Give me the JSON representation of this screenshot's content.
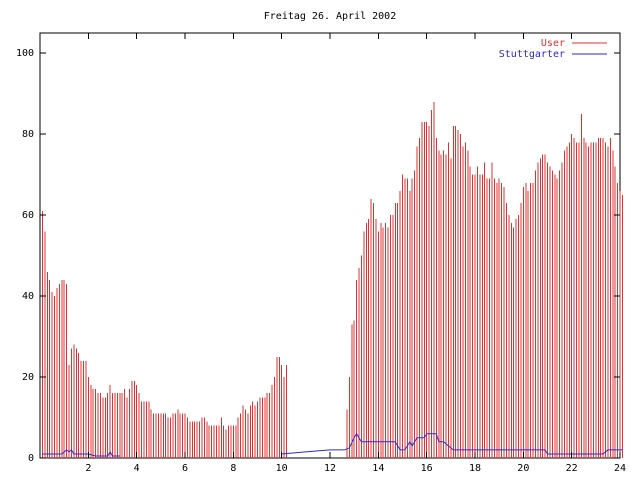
{
  "chart_data": {
    "type": "bar",
    "title": "Freitag 26. April 2002",
    "xlabel": "",
    "ylabel": "",
    "xlim": [
      0,
      24
    ],
    "ylim": [
      0,
      105
    ],
    "x_ticks": [
      2,
      4,
      6,
      8,
      10,
      12,
      14,
      16,
      18,
      20,
      22,
      24
    ],
    "y_ticks": [
      0,
      20,
      40,
      60,
      80,
      100
    ],
    "grid": false,
    "legend_position": "top-right",
    "series": [
      {
        "name": "User",
        "type": "bar",
        "color": "#e03030",
        "points": [
          [
            0.1,
            61
          ],
          [
            0.2,
            56
          ],
          [
            0.3,
            46
          ],
          [
            0.4,
            44
          ],
          [
            0.5,
            41
          ],
          [
            0.6,
            40
          ],
          [
            0.7,
            42
          ],
          [
            0.8,
            43
          ],
          [
            0.9,
            44
          ],
          [
            1.0,
            44
          ],
          [
            1.1,
            43
          ],
          [
            1.2,
            23
          ],
          [
            1.3,
            27
          ],
          [
            1.4,
            28
          ],
          [
            1.5,
            27
          ],
          [
            1.6,
            26
          ],
          [
            1.7,
            24
          ],
          [
            1.8,
            24
          ],
          [
            1.9,
            24
          ],
          [
            2.0,
            20
          ],
          [
            2.1,
            18
          ],
          [
            2.2,
            17
          ],
          [
            2.3,
            17
          ],
          [
            2.4,
            16
          ],
          [
            2.5,
            16
          ],
          [
            2.6,
            15
          ],
          [
            2.7,
            15
          ],
          [
            2.8,
            16
          ],
          [
            2.9,
            18
          ],
          [
            3.0,
            16
          ],
          [
            3.1,
            16
          ],
          [
            3.2,
            16
          ],
          [
            3.3,
            16
          ],
          [
            3.4,
            16
          ],
          [
            3.5,
            17
          ],
          [
            3.6,
            15
          ],
          [
            3.7,
            17
          ],
          [
            3.8,
            19
          ],
          [
            3.9,
            19
          ],
          [
            4.0,
            18
          ],
          [
            4.1,
            16
          ],
          [
            4.2,
            14
          ],
          [
            4.3,
            14
          ],
          [
            4.4,
            14
          ],
          [
            4.5,
            14
          ],
          [
            4.6,
            12
          ],
          [
            4.7,
            11
          ],
          [
            4.8,
            11
          ],
          [
            4.9,
            11
          ],
          [
            5.0,
            11
          ],
          [
            5.1,
            11
          ],
          [
            5.2,
            11
          ],
          [
            5.3,
            10
          ],
          [
            5.4,
            10
          ],
          [
            5.5,
            11
          ],
          [
            5.6,
            11
          ],
          [
            5.7,
            12
          ],
          [
            5.8,
            11
          ],
          [
            5.9,
            11
          ],
          [
            6.0,
            11
          ],
          [
            6.1,
            10
          ],
          [
            6.2,
            9
          ],
          [
            6.3,
            9
          ],
          [
            6.4,
            9
          ],
          [
            6.5,
            9
          ],
          [
            6.6,
            9
          ],
          [
            6.7,
            10
          ],
          [
            6.8,
            10
          ],
          [
            6.9,
            9
          ],
          [
            7.0,
            8
          ],
          [
            7.1,
            8
          ],
          [
            7.2,
            8
          ],
          [
            7.3,
            8
          ],
          [
            7.4,
            8
          ],
          [
            7.5,
            10
          ],
          [
            7.6,
            8
          ],
          [
            7.7,
            7
          ],
          [
            7.8,
            8
          ],
          [
            7.9,
            8
          ],
          [
            8.0,
            8
          ],
          [
            8.1,
            8
          ],
          [
            8.2,
            10
          ],
          [
            8.3,
            11
          ],
          [
            8.4,
            13
          ],
          [
            8.5,
            12
          ],
          [
            8.6,
            11
          ],
          [
            8.7,
            13
          ],
          [
            8.8,
            14
          ],
          [
            8.9,
            13
          ],
          [
            9.0,
            14
          ],
          [
            9.1,
            15
          ],
          [
            9.2,
            15
          ],
          [
            9.3,
            15
          ],
          [
            9.4,
            16
          ],
          [
            9.5,
            16
          ],
          [
            9.6,
            18
          ],
          [
            9.7,
            20
          ],
          [
            9.8,
            25
          ],
          [
            9.9,
            25
          ],
          [
            10.0,
            23
          ],
          [
            10.1,
            20
          ],
          [
            10.2,
            23
          ],
          [
            12.7,
            12
          ],
          [
            12.8,
            20
          ],
          [
            12.9,
            33
          ],
          [
            13.0,
            34
          ],
          [
            13.1,
            44
          ],
          [
            13.2,
            47
          ],
          [
            13.3,
            50
          ],
          [
            13.4,
            56
          ],
          [
            13.5,
            58
          ],
          [
            13.6,
            59
          ],
          [
            13.7,
            64
          ],
          [
            13.8,
            63
          ],
          [
            13.9,
            59
          ],
          [
            14.0,
            56
          ],
          [
            14.1,
            58
          ],
          [
            14.2,
            57
          ],
          [
            14.3,
            58
          ],
          [
            14.4,
            57
          ],
          [
            14.5,
            60
          ],
          [
            14.6,
            60
          ],
          [
            14.7,
            63
          ],
          [
            14.8,
            63
          ],
          [
            14.9,
            66
          ],
          [
            15.0,
            70
          ],
          [
            15.1,
            69
          ],
          [
            15.2,
            69
          ],
          [
            15.3,
            66
          ],
          [
            15.4,
            69
          ],
          [
            15.5,
            71
          ],
          [
            15.6,
            77
          ],
          [
            15.7,
            79
          ],
          [
            15.8,
            83
          ],
          [
            15.9,
            83
          ],
          [
            16.0,
            83
          ],
          [
            16.1,
            82
          ],
          [
            16.2,
            86
          ],
          [
            16.3,
            88
          ],
          [
            16.4,
            79
          ],
          [
            16.5,
            76
          ],
          [
            16.6,
            75
          ],
          [
            16.7,
            76
          ],
          [
            16.8,
            75
          ],
          [
            16.9,
            78
          ],
          [
            17.0,
            74
          ],
          [
            17.1,
            82
          ],
          [
            17.2,
            82
          ],
          [
            17.3,
            81
          ],
          [
            17.4,
            80
          ],
          [
            17.5,
            77
          ],
          [
            17.6,
            78
          ],
          [
            17.7,
            76
          ],
          [
            17.8,
            72
          ],
          [
            17.9,
            70
          ],
          [
            18.0,
            70
          ],
          [
            18.1,
            72
          ],
          [
            18.2,
            70
          ],
          [
            18.3,
            70
          ],
          [
            18.4,
            73
          ],
          [
            18.5,
            69
          ],
          [
            18.6,
            69
          ],
          [
            18.7,
            73
          ],
          [
            18.8,
            69
          ],
          [
            18.9,
            68
          ],
          [
            19.0,
            69
          ],
          [
            19.1,
            68
          ],
          [
            19.2,
            67
          ],
          [
            19.3,
            63
          ],
          [
            19.4,
            60
          ],
          [
            19.5,
            58
          ],
          [
            19.6,
            57
          ],
          [
            19.7,
            59
          ],
          [
            19.8,
            60
          ],
          [
            19.9,
            63
          ],
          [
            20.0,
            67
          ],
          [
            20.1,
            68
          ],
          [
            20.2,
            66
          ],
          [
            20.3,
            68
          ],
          [
            20.4,
            68
          ],
          [
            20.5,
            71
          ],
          [
            20.6,
            73
          ],
          [
            20.7,
            74
          ],
          [
            20.8,
            75
          ],
          [
            20.9,
            75
          ],
          [
            21.0,
            73
          ],
          [
            21.1,
            72
          ],
          [
            21.2,
            71
          ],
          [
            21.3,
            70
          ],
          [
            21.4,
            69
          ],
          [
            21.5,
            71
          ],
          [
            21.6,
            73
          ],
          [
            21.7,
            76
          ],
          [
            21.8,
            77
          ],
          [
            21.9,
            78
          ],
          [
            22.0,
            80
          ],
          [
            22.1,
            79
          ],
          [
            22.2,
            78
          ],
          [
            22.3,
            78
          ],
          [
            22.4,
            85
          ],
          [
            22.5,
            79
          ],
          [
            22.6,
            78
          ],
          [
            22.7,
            77
          ],
          [
            22.8,
            78
          ],
          [
            22.9,
            78
          ],
          [
            23.0,
            78
          ],
          [
            23.1,
            79
          ],
          [
            23.2,
            79
          ],
          [
            23.3,
            79
          ],
          [
            23.4,
            78
          ],
          [
            23.5,
            77
          ],
          [
            23.6,
            79
          ],
          [
            23.7,
            76
          ],
          [
            23.8,
            72
          ],
          [
            23.9,
            68
          ],
          [
            24.0,
            66
          ],
          [
            24.1,
            65
          ]
        ]
      },
      {
        "name": "Stuttgarter",
        "type": "line",
        "color": "#2828d8",
        "segments": [
          [
            [
              0.1,
              1
            ],
            [
              0.6,
              1
            ],
            [
              0.9,
              1
            ],
            [
              1.1,
              2
            ],
            [
              1.2,
              1.5
            ],
            [
              1.3,
              2
            ],
            [
              1.4,
              1
            ],
            [
              2.0,
              1
            ],
            [
              2.3,
              0.5
            ],
            [
              2.6,
              0.5
            ],
            [
              2.8,
              0.5
            ],
            [
              2.9,
              1.5
            ],
            [
              3.0,
              0.5
            ],
            [
              3.3,
              0.5
            ]
          ],
          [
            [
              10.0,
              1
            ],
            [
              10.4,
              1.2
            ],
            [
              11.0,
              1.5
            ],
            [
              12.0,
              2
            ],
            [
              12.6,
              2
            ],
            [
              12.8,
              2.5
            ],
            [
              13.0,
              5
            ],
            [
              13.1,
              6
            ],
            [
              13.2,
              5
            ],
            [
              13.3,
              4
            ],
            [
              14.0,
              4
            ],
            [
              14.3,
              4
            ],
            [
              14.5,
              4
            ],
            [
              14.7,
              4
            ],
            [
              14.9,
              2
            ],
            [
              15.1,
              2
            ],
            [
              15.3,
              4
            ],
            [
              15.4,
              3
            ],
            [
              15.6,
              5
            ],
            [
              15.8,
              5
            ],
            [
              15.9,
              5
            ],
            [
              16.0,
              6
            ],
            [
              16.3,
              6
            ],
            [
              16.4,
              6
            ],
            [
              16.5,
              4
            ],
            [
              16.7,
              4
            ],
            [
              16.9,
              3
            ],
            [
              17.1,
              2
            ],
            [
              17.3,
              2
            ],
            [
              18.0,
              2
            ],
            [
              19.0,
              2
            ],
            [
              20.0,
              2
            ],
            [
              20.7,
              2
            ],
            [
              20.9,
              2
            ],
            [
              21.0,
              1
            ],
            [
              22.0,
              1
            ],
            [
              23.0,
              1
            ],
            [
              23.3,
              1
            ],
            [
              23.5,
              2
            ],
            [
              24.1,
              2
            ]
          ]
        ]
      }
    ]
  }
}
